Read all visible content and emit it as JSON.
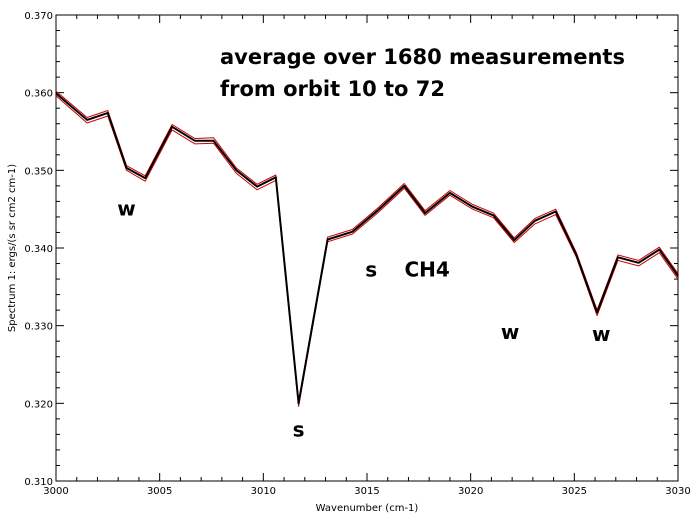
{
  "chart_data": {
    "type": "line",
    "title_lines": [
      "average over 1680 measurements",
      "from orbit 10 to 72"
    ],
    "xlabel": "Wavenumber (cm-1)",
    "ylabel": "Spectrum 1: ergs/(s sr cm2 cm-1)",
    "xlim": [
      3000,
      3030
    ],
    "ylim": [
      0.31,
      0.37
    ],
    "x_ticks": [
      "3000",
      "3005",
      "3010",
      "3015",
      "3020",
      "3025",
      "3030"
    ],
    "y_ticks": [
      "0.310",
      "0.320",
      "0.330",
      "0.340",
      "0.350",
      "0.360",
      "0.370"
    ],
    "grid": false,
    "series": [
      {
        "color": "#000000",
        "x": [
          3000,
          3001.5,
          3002.5,
          3003.4,
          3004.3,
          3005.6,
          3006.7,
          3007.6,
          3008.7,
          3009.7,
          3010.6,
          3011.7,
          3013.1,
          3014.3,
          3015.5,
          3016.8,
          3017.8,
          3019.0,
          3020.1,
          3021.1,
          3022.1,
          3023.1,
          3024.1,
          3025.1,
          3026.1,
          3027.1,
          3028.1,
          3029.1,
          3030.0
        ],
        "y": [
          0.3599,
          0.3565,
          0.3574,
          0.3503,
          0.349,
          0.3556,
          0.3538,
          0.3538,
          0.35,
          0.3479,
          0.3491,
          0.32,
          0.3411,
          0.3421,
          0.3448,
          0.348,
          0.3445,
          0.3471,
          0.3453,
          0.3442,
          0.341,
          0.3435,
          0.3447,
          0.3391,
          0.3317,
          0.3388,
          0.3381,
          0.3398,
          0.3364
        ]
      },
      {
        "color": "#cc0000",
        "x": [
          3000,
          3001.5,
          3002.5,
          3003.4,
          3004.3,
          3005.6,
          3006.7,
          3007.6,
          3008.7,
          3009.7,
          3010.6,
          3011.7,
          3013.1,
          3014.3,
          3015.5,
          3016.8,
          3017.8,
          3019.0,
          3020.1,
          3021.1,
          3022.1,
          3023.1,
          3024.1,
          3025.1,
          3026.1,
          3027.1,
          3028.1,
          3029.1,
          3030.0
        ],
        "y": [
          0.3596,
          0.3561,
          0.357,
          0.35,
          0.3486,
          0.3552,
          0.3534,
          0.3535,
          0.3496,
          0.3475,
          0.3487,
          0.3196,
          0.3408,
          0.3418,
          0.3445,
          0.3477,
          0.3442,
          0.3468,
          0.345,
          0.3439,
          0.3407,
          0.3431,
          0.3443,
          0.3388,
          0.3313,
          0.3384,
          0.3377,
          0.3394,
          0.336
        ]
      },
      {
        "color": "#cc0000",
        "x": [
          3000,
          3001.5,
          3002.5,
          3003.4,
          3004.3,
          3005.6,
          3006.7,
          3007.6,
          3008.7,
          3009.7,
          3010.6,
          3011.7,
          3013.1,
          3014.3,
          3015.5,
          3016.8,
          3017.8,
          3019.0,
          3020.1,
          3021.1,
          3022.1,
          3023.1,
          3024.1,
          3025.1,
          3026.1,
          3027.1,
          3028.1,
          3029.1,
          3030.0
        ],
        "y": [
          0.3602,
          0.3568,
          0.3577,
          0.3506,
          0.3493,
          0.3559,
          0.3541,
          0.3542,
          0.3503,
          0.3482,
          0.3494,
          0.3203,
          0.3414,
          0.3424,
          0.3451,
          0.3483,
          0.3448,
          0.3474,
          0.3456,
          0.3445,
          0.3413,
          0.3438,
          0.345,
          0.3394,
          0.332,
          0.3391,
          0.3384,
          0.3401,
          0.3367
        ]
      }
    ],
    "annotations": [
      {
        "text": "w",
        "x": 3003.4,
        "y": 0.3442
      },
      {
        "text": "s",
        "x": 3011.7,
        "y": 0.3157
      },
      {
        "text": "s",
        "x": 3015.2,
        "y": 0.3363
      },
      {
        "text": "CH4",
        "x": 3017.9,
        "y": 0.3363
      },
      {
        "text": "w",
        "x": 3021.9,
        "y": 0.3283
      },
      {
        "text": "w",
        "x": 3026.3,
        "y": 0.328
      }
    ]
  }
}
